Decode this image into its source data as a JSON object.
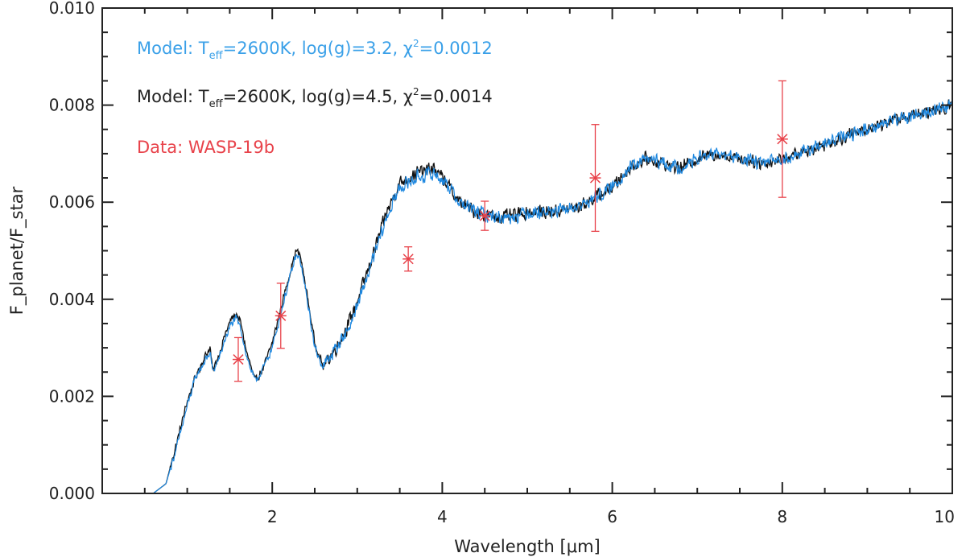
{
  "chart_data": {
    "type": "line",
    "title": "",
    "xlabel": "Wavelength [μm]",
    "ylabel": "F_planet/F_star",
    "xlim": [
      0.0,
      10.0
    ],
    "ylim": [
      0.0,
      0.01
    ],
    "x_ticks": [
      "2",
      "4",
      "6",
      "8",
      "10"
    ],
    "y_ticks": [
      "0.000",
      "0.002",
      "0.004",
      "0.006",
      "0.008",
      "0.010"
    ],
    "legend_placement": "top-left",
    "grid": false,
    "legend": [
      {
        "prefix": "Model: T",
        "sub": "eff",
        "mid": "=2600K, log(g)=3.2, χ",
        "sup": "2",
        "suffix": "=0.0012",
        "color": "#3aa0e8"
      },
      {
        "prefix": "Model: T",
        "sub": "eff",
        "mid": "=2600K, log(g)=4.5, χ",
        "sup": "2",
        "suffix": "=0.0014",
        "color": "#222222"
      },
      {
        "text": "Data: WASP-19b",
        "color": "#e8424a"
      }
    ],
    "series": [
      {
        "name": "Model: Teff=2600K, log(g)=4.5",
        "color": "#111111",
        "x": [
          0.1,
          0.4,
          0.6,
          0.75,
          0.9,
          1.0,
          1.1,
          1.2,
          1.27,
          1.3,
          1.38,
          1.45,
          1.52,
          1.58,
          1.63,
          1.7,
          1.8,
          1.9,
          2.0,
          2.1,
          2.2,
          2.28,
          2.33,
          2.4,
          2.5,
          2.6,
          2.75,
          2.9,
          3.05,
          3.2,
          3.35,
          3.5,
          3.7,
          3.9,
          4.05,
          4.2,
          4.4,
          4.6,
          4.8,
          5.0,
          5.3,
          5.6,
          5.8,
          6.0,
          6.2,
          6.4,
          6.6,
          6.8,
          7.0,
          7.2,
          7.5,
          7.8,
          8.0,
          8.2,
          8.5,
          8.8,
          9.0,
          9.3,
          9.6,
          10.0
        ],
        "y": [
          0.0,
          0.0,
          0.0,
          0.0002,
          0.0012,
          0.0019,
          0.0024,
          0.0028,
          0.003,
          0.0025,
          0.0029,
          0.0033,
          0.0036,
          0.0037,
          0.0035,
          0.0029,
          0.0023,
          0.0026,
          0.0031,
          0.0038,
          0.0045,
          0.005,
          0.0049,
          0.0042,
          0.0031,
          0.0026,
          0.003,
          0.0035,
          0.0042,
          0.005,
          0.0058,
          0.0064,
          0.0066,
          0.0067,
          0.0064,
          0.006,
          0.0058,
          0.0057,
          0.0057,
          0.0058,
          0.0058,
          0.0059,
          0.0061,
          0.0063,
          0.0067,
          0.0069,
          0.0068,
          0.0067,
          0.0069,
          0.007,
          0.0069,
          0.0068,
          0.0069,
          0.007,
          0.0072,
          0.0074,
          0.0075,
          0.0077,
          0.0078,
          0.008
        ]
      },
      {
        "name": "Model: Teff=2600K, log(g)=3.2",
        "color": "#1e88e0",
        "x": [
          0.1,
          0.4,
          0.6,
          0.75,
          0.9,
          1.0,
          1.1,
          1.2,
          1.27,
          1.3,
          1.38,
          1.45,
          1.52,
          1.58,
          1.63,
          1.7,
          1.8,
          1.9,
          2.0,
          2.1,
          2.2,
          2.28,
          2.33,
          2.4,
          2.5,
          2.6,
          2.75,
          2.9,
          3.05,
          3.2,
          3.35,
          3.5,
          3.7,
          3.9,
          4.05,
          4.2,
          4.4,
          4.6,
          4.8,
          5.0,
          5.3,
          5.6,
          5.8,
          6.0,
          6.2,
          6.4,
          6.6,
          6.8,
          7.0,
          7.2,
          7.5,
          7.8,
          8.0,
          8.2,
          8.5,
          8.8,
          9.0,
          9.3,
          9.6,
          10.0
        ],
        "y": [
          0.0,
          0.0,
          0.0,
          0.0002,
          0.0011,
          0.0018,
          0.0024,
          0.0027,
          0.0029,
          0.0025,
          0.0028,
          0.0032,
          0.0035,
          0.0036,
          0.0034,
          0.0028,
          0.0023,
          0.0026,
          0.003,
          0.0037,
          0.0044,
          0.0049,
          0.0048,
          0.0041,
          0.003,
          0.0026,
          0.003,
          0.0034,
          0.0041,
          0.0049,
          0.0057,
          0.0063,
          0.0065,
          0.0066,
          0.0064,
          0.006,
          0.0058,
          0.0057,
          0.0057,
          0.0058,
          0.0058,
          0.0059,
          0.0061,
          0.0063,
          0.0067,
          0.0069,
          0.0068,
          0.0067,
          0.0069,
          0.007,
          0.0069,
          0.0068,
          0.0069,
          0.007,
          0.0072,
          0.0074,
          0.0075,
          0.0077,
          0.0078,
          0.008
        ]
      }
    ],
    "data_points": {
      "name": "Data: WASP-19b",
      "color": "#e8424a",
      "points": [
        {
          "x": 1.6,
          "y": 0.00276,
          "err": 0.00045
        },
        {
          "x": 2.1,
          "y": 0.00366,
          "err": 0.00067
        },
        {
          "x": 3.6,
          "y": 0.00483,
          "err": 0.00025
        },
        {
          "x": 4.5,
          "y": 0.00572,
          "err": 0.0003
        },
        {
          "x": 5.8,
          "y": 0.0065,
          "err": 0.0011
        },
        {
          "x": 8.0,
          "y": 0.0073,
          "err": 0.0012
        }
      ]
    }
  }
}
